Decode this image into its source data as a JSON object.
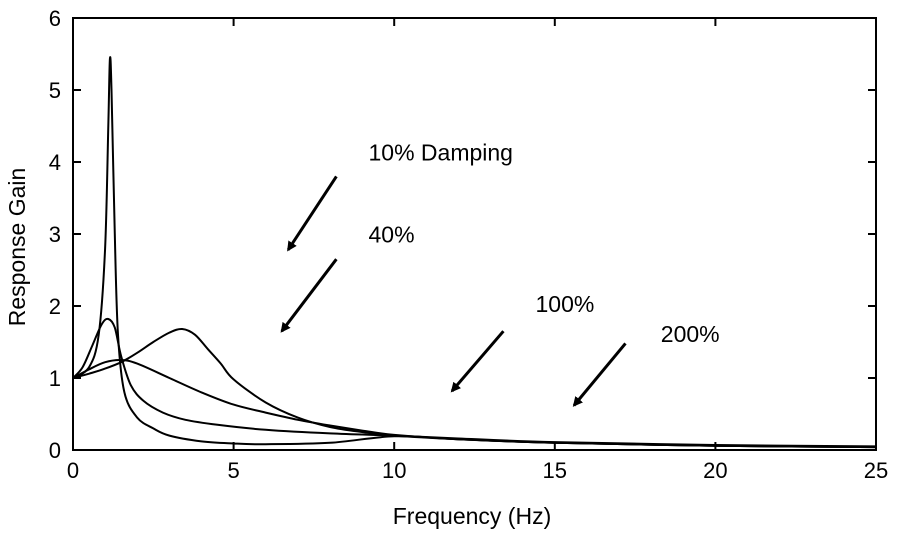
{
  "chart_data": {
    "type": "line",
    "title": "",
    "xlabel": "Frequency (Hz)",
    "ylabel": "Response Gain",
    "xlim": [
      0,
      25
    ],
    "ylim": [
      0,
      6
    ],
    "xticks": [
      0,
      5,
      10,
      15,
      20,
      25
    ],
    "yticks": [
      0,
      1,
      2,
      3,
      4,
      5,
      6
    ],
    "grid": false,
    "legend": "none",
    "series": [
      {
        "x": [
          0,
          0.5,
          0.8,
          1.0,
          1.1,
          1.15,
          1.2,
          1.3,
          1.4,
          1.6,
          2,
          2.5,
          3,
          4,
          5,
          6,
          8,
          10,
          12,
          15,
          20,
          25
        ],
        "y": [
          1.0,
          1.15,
          1.6,
          2.8,
          4.5,
          5.43,
          5.0,
          3.0,
          1.6,
          0.8,
          0.45,
          0.3,
          0.2,
          0.12,
          0.09,
          0.08,
          0.1,
          0.19,
          0.15,
          0.1,
          0.06,
          0.04
        ]
      },
      {
        "x": [
          0,
          0.3,
          0.6,
          0.9,
          1.1,
          1.3,
          1.5,
          1.8,
          2.2,
          2.8,
          3.5,
          4.5,
          6,
          8,
          10,
          12,
          15,
          20,
          25
        ],
        "y": [
          1.0,
          1.15,
          1.45,
          1.75,
          1.82,
          1.7,
          1.3,
          0.9,
          0.68,
          0.52,
          0.42,
          0.35,
          0.28,
          0.23,
          0.2,
          0.16,
          0.11,
          0.07,
          0.05
        ]
      },
      {
        "x": [
          0,
          0.5,
          1.0,
          1.5,
          2,
          3,
          4,
          5,
          6,
          7,
          8,
          9,
          10,
          12,
          15,
          20,
          25
        ],
        "y": [
          1.0,
          1.12,
          1.22,
          1.25,
          1.2,
          1.0,
          0.8,
          0.63,
          0.52,
          0.42,
          0.34,
          0.27,
          0.21,
          0.15,
          0.1,
          0.06,
          0.04
        ]
      },
      {
        "x": [
          0,
          0.5,
          1.0,
          1.5,
          2,
          2.5,
          3,
          3.4,
          3.8,
          4.2,
          4.6,
          5,
          6,
          7,
          8,
          9,
          10,
          12,
          15,
          20,
          25
        ],
        "y": [
          1.0,
          1.06,
          1.13,
          1.22,
          1.35,
          1.5,
          1.63,
          1.68,
          1.6,
          1.4,
          1.2,
          0.98,
          0.66,
          0.45,
          0.32,
          0.25,
          0.2,
          0.15,
          0.1,
          0.06,
          0.04
        ]
      }
    ],
    "annotations": [
      {
        "text": "10% Damping",
        "x": 9.2,
        "y": 4.02,
        "arrow_from": [
          8.2,
          3.8
        ],
        "arrow_to": [
          6.7,
          2.78
        ]
      },
      {
        "text": "40%",
        "x": 9.2,
        "y": 2.88,
        "arrow_from": [
          8.2,
          2.65
        ],
        "arrow_to": [
          6.5,
          1.65
        ]
      },
      {
        "text": "100%",
        "x": 14.4,
        "y": 1.92,
        "arrow_from": [
          13.4,
          1.65
        ],
        "arrow_to": [
          11.8,
          0.82
        ]
      },
      {
        "text": "200%",
        "x": 18.3,
        "y": 1.5,
        "arrow_from": [
          17.2,
          1.48
        ],
        "arrow_to": [
          15.6,
          0.62
        ]
      }
    ]
  }
}
